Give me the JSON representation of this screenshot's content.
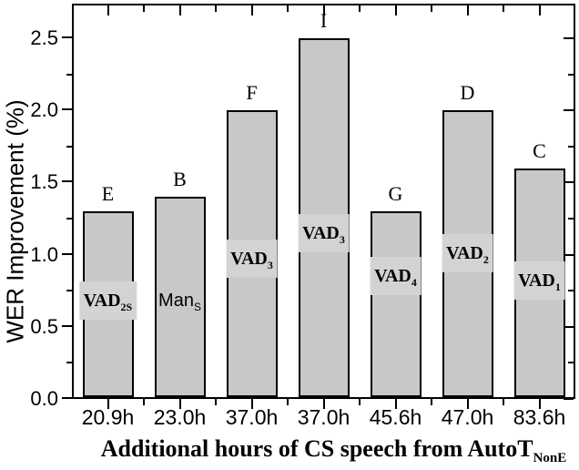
{
  "chart_data": {
    "type": "bar",
    "title": "",
    "ylabel": "WER Improvement (%)",
    "xlabel": {
      "base": "Additional hours of CS speech from AutoT",
      "sub": "NonE"
    },
    "categories": [
      "20.9h",
      "23.0h",
      "37.0h",
      "37.0h",
      "45.6h",
      "47.0h",
      "83.6h"
    ],
    "values": [
      1.3,
      1.4,
      2.0,
      2.5,
      1.3,
      2.0,
      1.6
    ],
    "point_labels": [
      "E",
      "B",
      "F",
      "I",
      "G",
      "D",
      "C"
    ],
    "bar_inner_labels": [
      {
        "base": "VAD",
        "sub": "2S",
        "style": "serif"
      },
      {
        "base": "Man",
        "sub": "S",
        "style": "sans"
      },
      {
        "base": "VAD",
        "sub": "3",
        "style": "serif"
      },
      {
        "base": "VAD",
        "sub": "3",
        "style": "serif"
      },
      {
        "base": "VAD",
        "sub": "4",
        "style": "serif"
      },
      {
        "base": "VAD",
        "sub": "2",
        "style": "serif"
      },
      {
        "base": "VAD",
        "sub": "1",
        "style": "serif"
      }
    ],
    "inner_label_y": [
      0.68,
      0.68,
      0.97,
      1.15,
      0.85,
      1.01,
      0.82
    ],
    "ylim": [
      0,
      2.74
    ],
    "yticks": [
      0.0,
      0.5,
      1.0,
      1.5,
      2.0,
      2.5
    ],
    "ytick_labels": [
      "0.0",
      "0.5",
      "1.0",
      "1.5",
      "2.0",
      "2.5"
    ],
    "yminor_step": 0.25,
    "grid": "off",
    "legend": "none",
    "colors": {
      "bar_fill": "#c8c8c8",
      "bar_border": "#000000",
      "inner_label_bg": "#d3d3d3",
      "axis": "#000000",
      "background": "#ffffff"
    }
  }
}
